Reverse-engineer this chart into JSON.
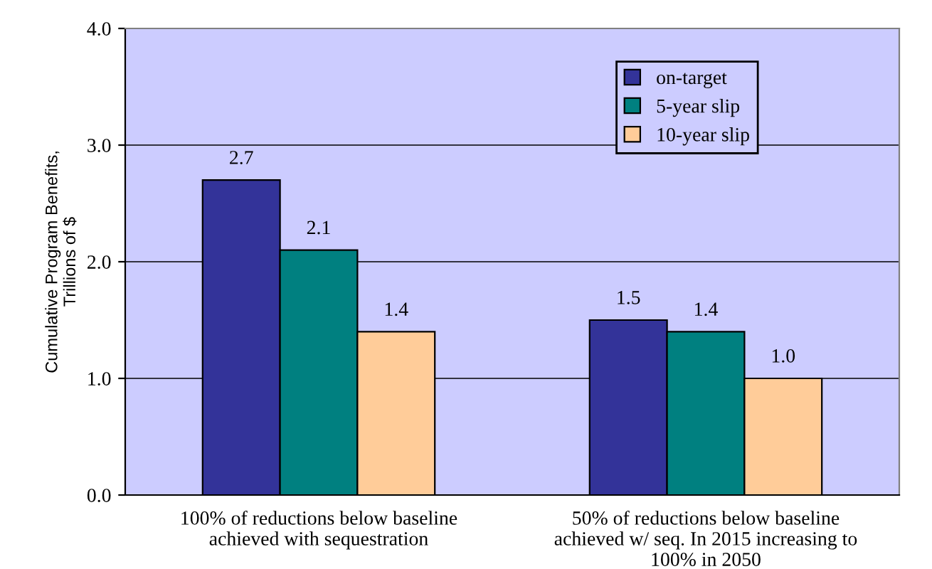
{
  "chart_data": {
    "type": "bar",
    "ylabel": "Cumulative Program Benefits,\nTrillions of $",
    "categories": [
      "100% of reductions below baseline\nachieved with sequestration",
      "50% of reductions below baseline\nachieved w/ seq. In 2015 increasing to\n100% in 2050"
    ],
    "series": [
      {
        "name": "on-target",
        "color": "#333399",
        "values": [
          2.7,
          1.5
        ],
        "value_labels": [
          "2.7",
          "1.5"
        ]
      },
      {
        "name": "5-year slip",
        "color": "#008080",
        "values": [
          2.1,
          1.4
        ],
        "value_labels": [
          "2.1",
          "1.4"
        ]
      },
      {
        "name": "10-year slip",
        "color": "#ffcc99",
        "values": [
          1.4,
          1.0
        ],
        "value_labels": [
          "1.4",
          "1.0"
        ]
      }
    ],
    "ylim": [
      0,
      4
    ],
    "yticks": [
      {
        "value": 0,
        "label": "0.0"
      },
      {
        "value": 1,
        "label": "1.0"
      },
      {
        "value": 2,
        "label": "2.0"
      },
      {
        "value": 3,
        "label": "3.0"
      },
      {
        "value": 4,
        "label": "4.0"
      }
    ],
    "grid": "y",
    "legend": "top right"
  }
}
